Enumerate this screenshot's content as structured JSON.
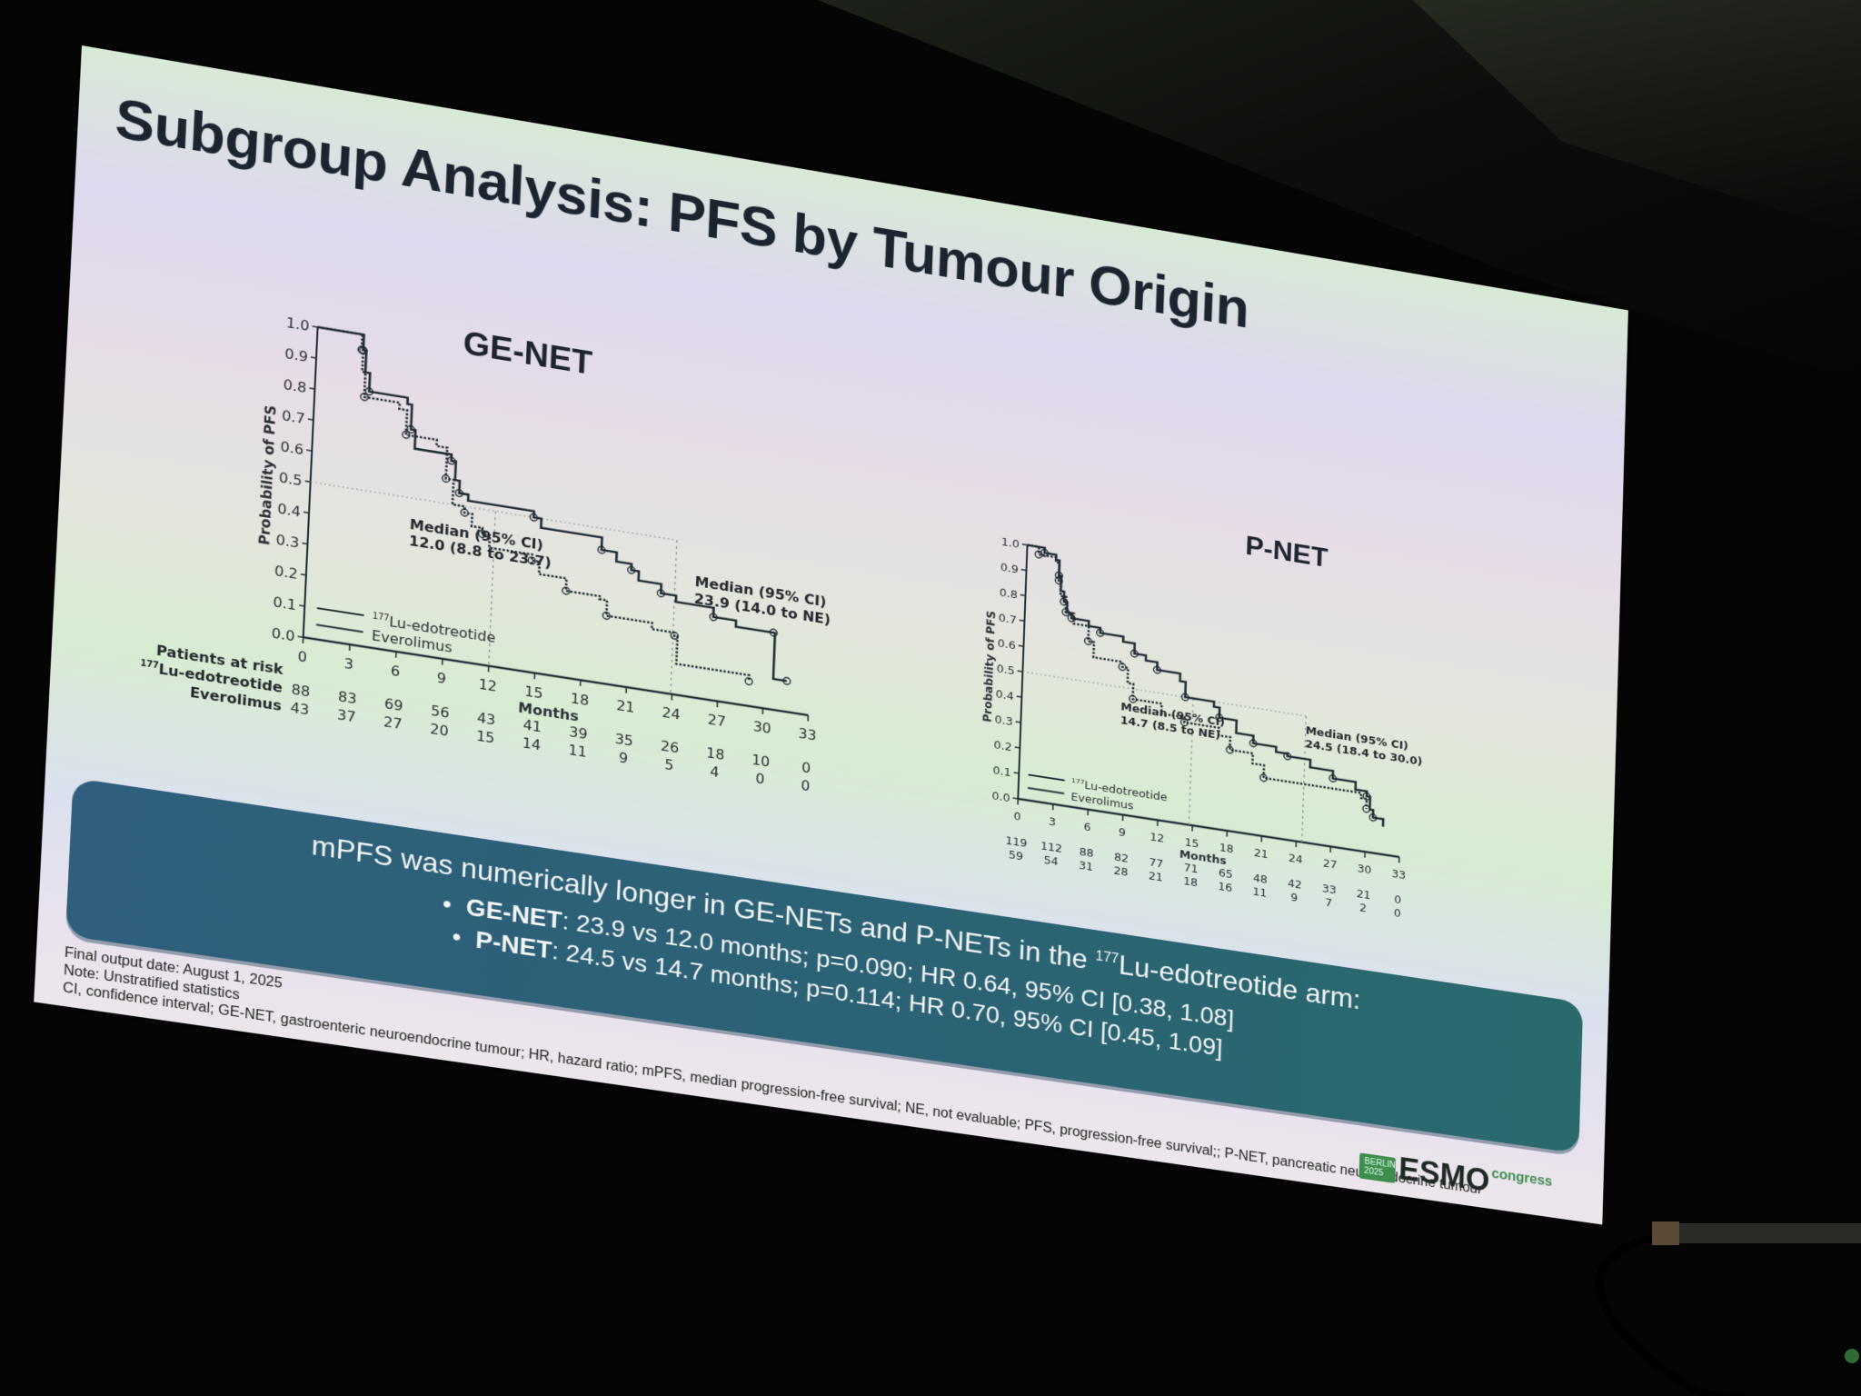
{
  "slide": {
    "title": "Subgroup Analysis: PFS by Tumour Origin",
    "summary": {
      "lead": "mPFS was numerically longer in GE-NETs and P-NETs in the",
      "lead_sup": "177",
      "lead_tail": "Lu-edotreotide arm:",
      "bullets": [
        {
          "label": "GE-NET",
          "text": ": 23.9 vs 12.0 months; p=0.090; HR 0.64, 95% CI [0.38, 1.08]"
        },
        {
          "label": "P-NET",
          "text": ": 24.5 vs 14.7 months; p=0.114; HR 0.70, 95% CI [0.45, 1.09]"
        }
      ]
    },
    "footnotes": [
      "Final output date: August 1, 2025",
      "Note: Unstratified statistics",
      "CI, confidence interval; GE-NET, gastroenteric neuroendocrine tumour; HR, hazard ratio; mPFS, median progression-free survival; NE, not evaluable; PFS, progression-free survival;; P-NET, pancreatic neuroendocrine tumour"
    ],
    "logo": {
      "badge_line1": "BERLIN",
      "badge_line2": "2025",
      "wordmark": "ESMO",
      "suffix": "congress"
    },
    "colors": {
      "summary_box": "#2b6275",
      "curve": "#1f2a33",
      "logo_green": "#3e8c4e"
    }
  },
  "chart_data": [
    {
      "type": "line",
      "subtype": "kaplan-meier",
      "title": "GE-NET",
      "xlabel": "Months",
      "ylabel": "Probability of PFS",
      "xlim": [
        0,
        33
      ],
      "ylim": [
        0,
        1.0
      ],
      "xticks": [
        0,
        3,
        6,
        9,
        12,
        15,
        18,
        21,
        24,
        27,
        30,
        33
      ],
      "yticks": [
        0.0,
        0.1,
        0.2,
        0.3,
        0.4,
        0.5,
        0.6,
        0.7,
        0.8,
        0.9,
        1.0
      ],
      "grid": false,
      "legend": {
        "position": "lower-left",
        "entries": [
          "177Lu-edotreotide",
          "Everolimus"
        ]
      },
      "series": [
        {
          "name": "177Lu-edotreotide",
          "style": "solid",
          "x": [
            0,
            3.0,
            3.2,
            3.5,
            6.0,
            6.3,
            6.6,
            9.0,
            9.3,
            9.6,
            10.2,
            14.5,
            15.0,
            19.0,
            20.0,
            21.0,
            21.5,
            23.0,
            24.0,
            26.5,
            28.0,
            30.5,
            30.6,
            31.5
          ],
          "y": [
            1.0,
            0.95,
            0.88,
            0.82,
            0.8,
            0.72,
            0.66,
            0.64,
            0.58,
            0.54,
            0.52,
            0.5,
            0.47,
            0.43,
            0.4,
            0.38,
            0.35,
            0.32,
            0.3,
            0.27,
            0.25,
            0.25,
            0.1,
            0.1
          ],
          "median": 23.9,
          "median_ci": "23.9 (14.0 to NE)",
          "at_risk": [
            88,
            83,
            69,
            56,
            43,
            41,
            39,
            35,
            26,
            18,
            10,
            0
          ]
        },
        {
          "name": "Everolimus",
          "style": "dotted",
          "x": [
            0,
            2.9,
            3.0,
            3.2,
            5.5,
            6.0,
            8.0,
            8.7,
            9.2,
            10.0,
            10.5,
            11.2,
            11.7,
            14.5,
            15.0,
            16.8,
            19.0,
            19.5,
            22.5,
            24.0,
            24.2,
            29.0
          ],
          "y": [
            1.0,
            0.95,
            0.88,
            0.8,
            0.78,
            0.7,
            0.68,
            0.58,
            0.5,
            0.48,
            0.44,
            0.42,
            0.38,
            0.36,
            0.32,
            0.28,
            0.27,
            0.22,
            0.2,
            0.19,
            0.1,
            0.08
          ],
          "median": 12.0,
          "median_ci": "12.0 (8.8 to 23.7)",
          "at_risk": [
            43,
            37,
            27,
            20,
            15,
            14,
            11,
            9,
            5,
            4,
            0,
            0
          ]
        }
      ],
      "annotations": [
        {
          "text": "Median (95% CI)\n12.0 (8.8 to 23.7)",
          "x": 12.0
        },
        {
          "text": "Median (95% CI)\n23.9 (14.0 to NE)",
          "x": 23.9
        }
      ],
      "at_risk_label": "Patients at risk"
    },
    {
      "type": "line",
      "subtype": "kaplan-meier",
      "title": "P-NET",
      "xlabel": "Months",
      "ylabel": "Probability of PFS",
      "xlim": [
        0,
        33
      ],
      "ylim": [
        0,
        1.0
      ],
      "xticks": [
        0,
        3,
        6,
        9,
        12,
        15,
        18,
        21,
        24,
        27,
        30,
        33
      ],
      "yticks": [
        0.0,
        0.1,
        0.2,
        0.3,
        0.4,
        0.5,
        0.6,
        0.7,
        0.8,
        0.9,
        1.0
      ],
      "grid": false,
      "legend": {
        "position": "lower-left",
        "entries": [
          "177Lu-edotreotide",
          "Everolimus"
        ]
      },
      "series": [
        {
          "name": "177Lu-edotreotide",
          "style": "solid",
          "x": [
            0,
            1.5,
            2.5,
            2.8,
            3.0,
            3.3,
            3.6,
            4.0,
            5.5,
            6.5,
            8.5,
            9.5,
            10.5,
            11.5,
            13.5,
            14.0,
            16.5,
            17.0,
            18.5,
            20.0,
            22.0,
            23.0,
            25.0,
            27.0,
            29.0,
            30.0,
            30.3,
            30.6,
            31.5
          ],
          "y": [
            1.0,
            0.98,
            0.96,
            0.9,
            0.84,
            0.8,
            0.76,
            0.74,
            0.72,
            0.7,
            0.68,
            0.64,
            0.62,
            0.59,
            0.56,
            0.5,
            0.48,
            0.44,
            0.39,
            0.36,
            0.34,
            0.33,
            0.3,
            0.27,
            0.24,
            0.22,
            0.17,
            0.14,
            0.11
          ],
          "median": 24.5,
          "median_ci": "24.5 (18.4 to 30.0)",
          "at_risk": [
            119,
            112,
            88,
            82,
            77,
            71,
            65,
            48,
            42,
            33,
            21,
            0
          ]
        },
        {
          "name": "Everolimus",
          "style": "dotted",
          "x": [
            0,
            1.0,
            2.5,
            2.8,
            3.0,
            3.5,
            4.2,
            5.5,
            6.0,
            8.5,
            9.0,
            9.5,
            12.0,
            14.0,
            17.0,
            18.0,
            20.0,
            21.0,
            29.5,
            30.0
          ],
          "y": [
            1.0,
            0.97,
            0.95,
            0.88,
            0.82,
            0.76,
            0.72,
            0.66,
            0.6,
            0.58,
            0.52,
            0.46,
            0.42,
            0.4,
            0.37,
            0.32,
            0.28,
            0.23,
            0.21,
            0.17
          ],
          "median": 14.7,
          "median_ci": "14.7 (8.5 to NE)",
          "at_risk": [
            59,
            54,
            31,
            28,
            21,
            18,
            16,
            11,
            9,
            7,
            2,
            0
          ]
        }
      ],
      "annotations": [
        {
          "text": "Median (95% CI)\n14.7 (8.5 to NE)",
          "x": 14.7
        },
        {
          "text": "Median (95% CI)\n24.5 (18.4 to 30.0)",
          "x": 24.5
        }
      ]
    }
  ],
  "labels": {
    "ge_title": "GE-NET",
    "pnet_title": "P-NET",
    "ylabel": "Probability of PFS",
    "xlabel": "Months",
    "at_risk_header": "Patients at risk",
    "arm1_sup": "177",
    "arm1": "Lu-edotreotide",
    "arm2": "Everolimus",
    "median_header": "Median (95% CI)",
    "ge_median_eve": "12.0 (8.8 to 23.7)",
    "ge_median_lu": "23.9 (14.0 to NE)",
    "pnet_median_eve": "14.7 (8.5 to NE)",
    "pnet_median_lu": "24.5 (18.4 to 30.0)"
  }
}
